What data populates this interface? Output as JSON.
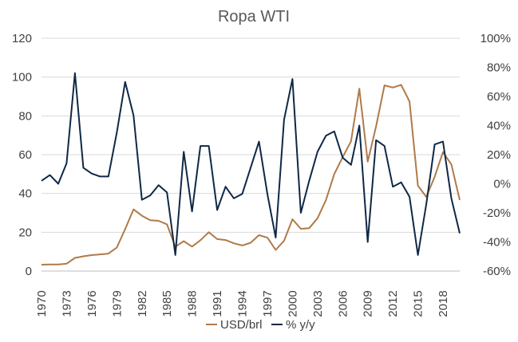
{
  "chart_data": {
    "type": "line",
    "title": "Ropa WTI",
    "xlabel": "",
    "ylabel": "",
    "y_left_range": [
      0,
      120
    ],
    "y_right_range": [
      -60,
      100
    ],
    "left_ticks": [
      "0",
      "20",
      "40",
      "60",
      "80",
      "100",
      "120"
    ],
    "right_ticks": [
      "-60%",
      "-40%",
      "-20%",
      "0%",
      "20%",
      "40%",
      "60%",
      "80%",
      "100%"
    ],
    "x_tick_labels": [
      "1970",
      "1973",
      "1976",
      "1979",
      "1982",
      "1985",
      "1988",
      "1991",
      "1994",
      "1997",
      "2000",
      "2003",
      "2006",
      "2009",
      "2012",
      "2015",
      "2018"
    ],
    "x": [
      1970,
      1971,
      1972,
      1973,
      1974,
      1975,
      1976,
      1977,
      1978,
      1979,
      1980,
      1981,
      1982,
      1983,
      1984,
      1985,
      1986,
      1987,
      1988,
      1989,
      1990,
      1991,
      1992,
      1993,
      1994,
      1995,
      1996,
      1997,
      1998,
      1999,
      2000,
      2001,
      2002,
      2003,
      2004,
      2005,
      2006,
      2007,
      2008,
      2009,
      2010,
      2011,
      2012,
      2013,
      2014,
      2015,
      2016,
      2017,
      2018,
      2019,
      2020
    ],
    "grid": true,
    "legend_position": "bottom",
    "series": [
      {
        "name": "USD/brl",
        "axis": "left",
        "color": "#b07a4a",
        "values": [
          3.3,
          3.4,
          3.4,
          3.8,
          6.8,
          7.6,
          8.2,
          8.6,
          9.0,
          12.1,
          21.6,
          31.8,
          28.5,
          26.2,
          25.9,
          24.1,
          12.5,
          15.4,
          12.6,
          15.9,
          20.0,
          16.5,
          16.0,
          14.3,
          13.2,
          14.6,
          18.5,
          17.2,
          10.9,
          15.6,
          26.7,
          21.8,
          22.1,
          27.2,
          36.5,
          50.0,
          58.7,
          66.9,
          94.0,
          56.4,
          74.6,
          95.7,
          94.6,
          96.0,
          87.4,
          44.0,
          38.2,
          48.6,
          61.3,
          55.0,
          36.6
        ]
      },
      {
        "name": "% y/y",
        "axis": "right",
        "color": "#0f2846",
        "values": [
          2,
          6,
          0,
          14,
          76,
          11,
          7,
          5,
          5,
          35,
          70,
          47,
          -11,
          -8,
          -1,
          -6,
          -49,
          22,
          -19,
          26,
          26,
          -18,
          -2,
          -10,
          -7,
          11,
          29,
          -7,
          -37,
          44,
          72,
          -20,
          2,
          22,
          33,
          36,
          18,
          13,
          40,
          -40,
          30,
          26,
          -2,
          1,
          -9,
          -49,
          -14,
          27,
          29,
          -10,
          -34
        ]
      }
    ]
  }
}
